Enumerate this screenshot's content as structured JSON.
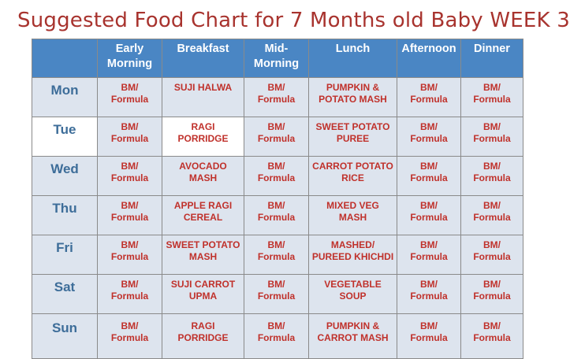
{
  "title": "Suggested Food Chart for 7 Months old Baby WEEK 3",
  "columns": [
    "",
    "Early\nMorning",
    "Breakfast",
    "Mid-\nMorning",
    "Lunch",
    "Afternoon",
    "Dinner"
  ],
  "rows": [
    {
      "day": "Mon",
      "cells": [
        "BM/\nFormula",
        "SUJI HALWA",
        "BM/\nFormula",
        "PUMPKIN &\nPOTATO MASH",
        "BM/\nFormula",
        "BM/\nFormula"
      ]
    },
    {
      "day": "Tue",
      "cells": [
        "BM/\nFormula",
        "RAGI\nPORRIDGE",
        "BM/\nFormula",
        "SWEET POTATO\nPUREE",
        "BM/\nFormula",
        "BM/\nFormula"
      ]
    },
    {
      "day": "Wed",
      "cells": [
        "BM/\nFormula",
        "AVOCADO\nMASH",
        "BM/\nFormula",
        "CARROT POTATO\nRICE",
        "BM/\nFormula",
        "BM/\nFormula"
      ]
    },
    {
      "day": "Thu",
      "cells": [
        "BM/\nFormula",
        "APPLE RAGI\nCEREAL",
        "BM/\nFormula",
        "MIXED VEG\nMASH",
        "BM/\nFormula",
        "BM/\nFormula"
      ]
    },
    {
      "day": "Fri",
      "cells": [
        "BM/\nFormula",
        "SWEET POTATO\nMASH",
        "BM/\nFormula",
        "MASHED/\nPUREED KHICHDI",
        "BM/\nFormula",
        "BM/\nFormula"
      ]
    },
    {
      "day": "Sat",
      "cells": [
        "BM/\nFormula",
        "SUJI CARROT\nUPMA",
        "BM/\nFormula",
        "VEGETABLE\nSOUP",
        "BM/\nFormula",
        "BM/\nFormula"
      ]
    },
    {
      "day": "Sun",
      "cells": [
        "BM/\nFormula",
        "RAGI\nPORRIDGE",
        "BM/\nFormula",
        "PUMPKIN &\nCARROT MASH",
        "BM/\nFormula",
        "BM/\nFormula"
      ]
    }
  ],
  "colors": {
    "title": "#a8332e",
    "header_bg": "#4a86c4",
    "header_text": "#ffffff",
    "cell_bg": "#dde4ee",
    "highlight_bg": "#ffffff",
    "day_text": "#3d6d99",
    "cell_text": "#c0312b"
  }
}
